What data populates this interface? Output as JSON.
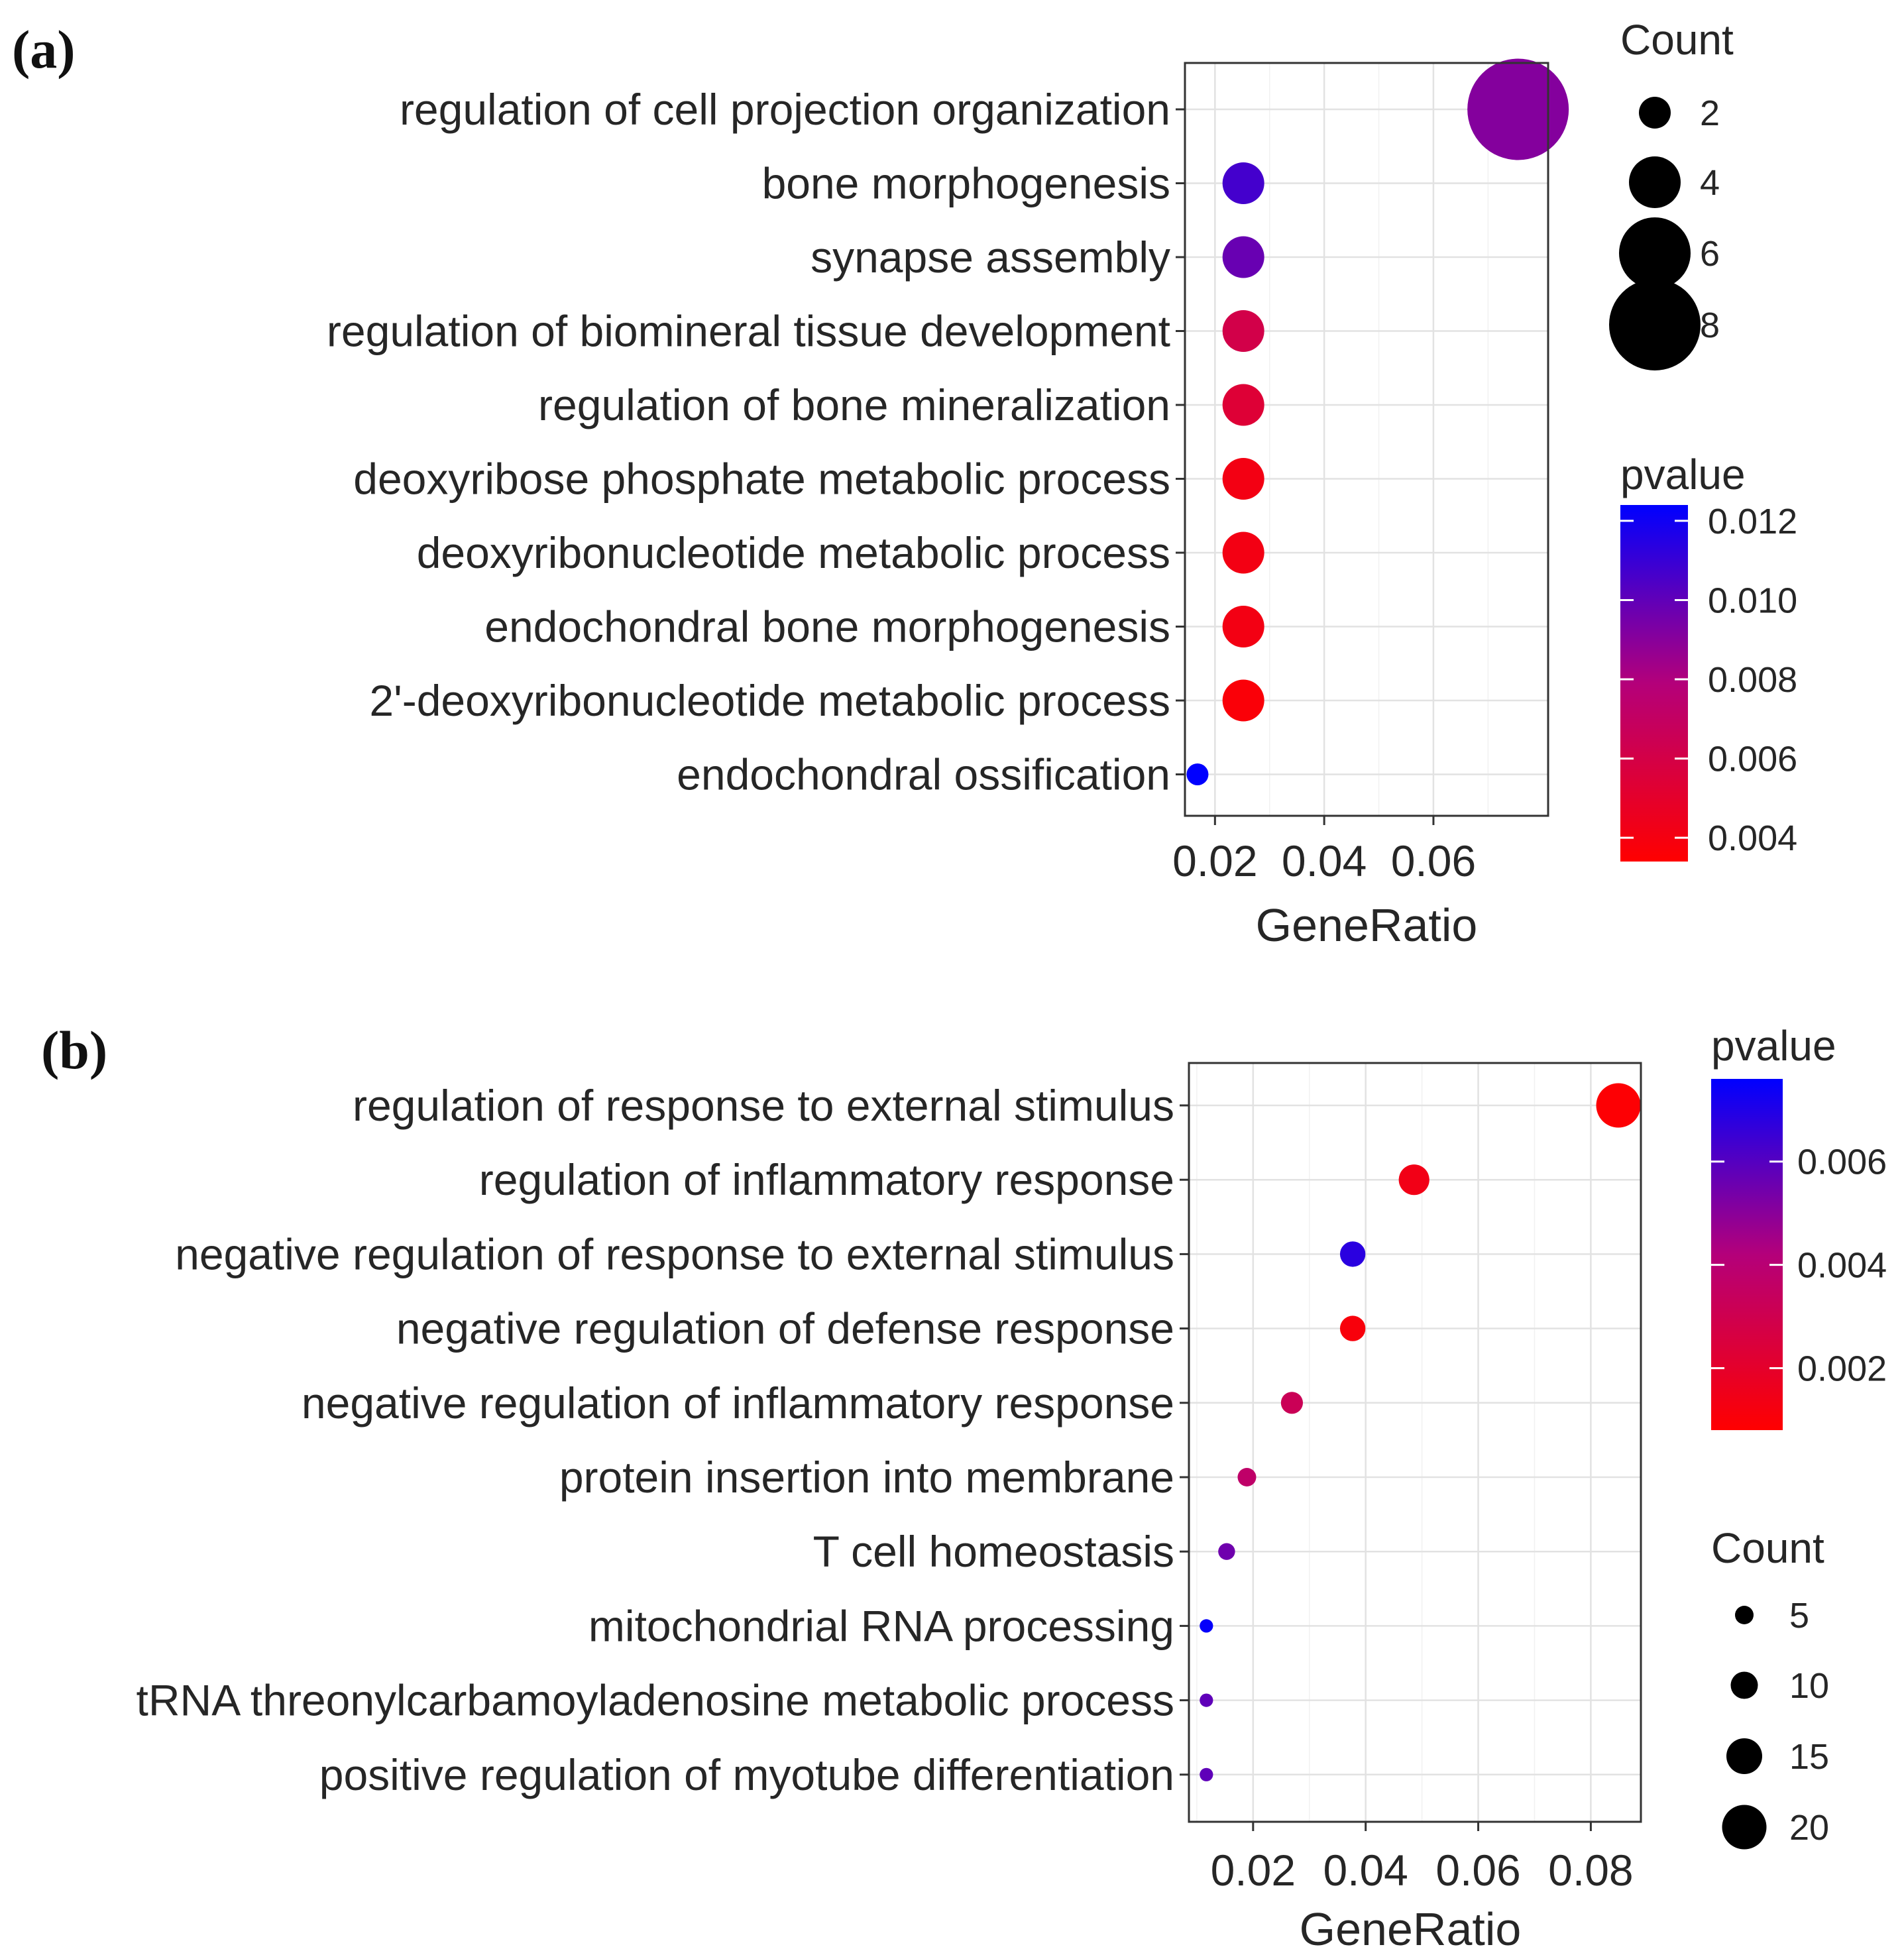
{
  "chart_data": [
    {
      "panel": "(a)",
      "type": "scatter",
      "subtype": "dotplot",
      "xlabel": "GeneRatio",
      "ylabel": "",
      "xlim": [
        0.0145,
        0.081
      ],
      "xticks": [
        0.02,
        0.04,
        0.06
      ],
      "xtick_labels": [
        "0.02",
        "0.04",
        "0.06"
      ],
      "grid": true,
      "categories": [
        "regulation of cell projection organization",
        "bone morphogenesis",
        "synapse assembly",
        "regulation of biomineral tissue development",
        "regulation of bone mineralization",
        "deoxyribose phosphate metabolic process",
        "deoxyribonucleotide metabolic process",
        "endochondral bone morphogenesis",
        "2'-deoxyribonucleotide metabolic process",
        "endochondral ossification"
      ],
      "gene_ratio": [
        0.0755,
        0.0252,
        0.0252,
        0.0252,
        0.0252,
        0.0252,
        0.0252,
        0.0252,
        0.0252,
        0.0168
      ],
      "count": [
        9,
        3,
        3,
        3,
        3,
        3,
        3,
        3,
        3,
        1
      ],
      "pvalue": [
        0.0091,
        0.0107,
        0.0098,
        0.0061,
        0.0054,
        0.0041,
        0.0041,
        0.0041,
        0.0037,
        0.0125
      ],
      "size_legend": {
        "title": "Count",
        "values": [
          2,
          4,
          6,
          8
        ],
        "labels": [
          "2",
          "4",
          "6",
          "8"
        ],
        "placement": "top-right"
      },
      "color_legend": {
        "title": "pvalue",
        "min": 0.0034,
        "max": 0.0124,
        "ticks": [
          0.012,
          0.01,
          0.008,
          0.006,
          0.004
        ],
        "tick_labels": [
          "0.012",
          "0.010",
          "0.008",
          "0.006",
          "0.004"
        ],
        "low_color": "#ff0000",
        "high_color": "#0000ff",
        "placement": "right"
      }
    },
    {
      "panel": "(b)",
      "type": "scatter",
      "subtype": "dotplot",
      "xlabel": "GeneRatio",
      "ylabel": "",
      "xlim": [
        0.0086,
        0.0889
      ],
      "xticks": [
        0.02,
        0.04,
        0.06,
        0.08
      ],
      "xtick_labels": [
        "0.02",
        "0.04",
        "0.06",
        "0.08"
      ],
      "grid": true,
      "categories": [
        "regulation of response to external stimulus",
        "regulation of inflammatory response",
        "negative regulation of response to external stimulus",
        "negative regulation of defense response",
        "negative regulation of inflammatory response",
        "protein insertion into membrane",
        "T cell homeostasis",
        "mitochondrial RNA processing",
        "tRNA threonylcarbamoyladenosine metabolic process",
        "positive regulation of myotube differentiation"
      ],
      "gene_ratio": [
        0.0849,
        0.0486,
        0.0377,
        0.0377,
        0.0269,
        0.0189,
        0.0153,
        0.0117,
        0.0117,
        0.0117
      ],
      "count": [
        20,
        12,
        9,
        9,
        7,
        5,
        4,
        2,
        2,
        2
      ],
      "pvalue": [
        0.0009,
        0.0014,
        0.0068,
        0.0011,
        0.0032,
        0.0037,
        0.0055,
        0.0075,
        0.0058,
        0.0058
      ],
      "size_legend": {
        "title": "Count",
        "values": [
          5,
          10,
          15,
          20
        ],
        "labels": [
          "5",
          "10",
          "15",
          "20"
        ],
        "placement": "bottom-right"
      },
      "color_legend": {
        "title": "pvalue",
        "min": 0.0008,
        "max": 0.0076,
        "ticks": [
          0.006,
          0.004,
          0.002
        ],
        "tick_labels": [
          "0.006",
          "0.004",
          "0.002"
        ],
        "low_color": "#ff0000",
        "high_color": "#0000ff",
        "placement": "top-right"
      }
    }
  ]
}
